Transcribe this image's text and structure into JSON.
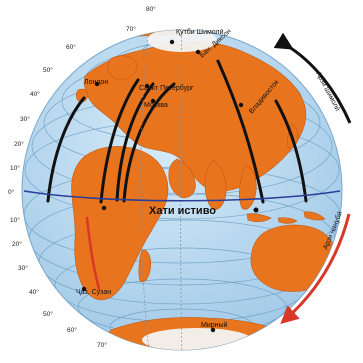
{
  "map": {
    "equator_label": "Хати истиво",
    "places": {
      "north_pole": "Қутби Шимолӣ",
      "dikson": "Бан. Диксон",
      "london": "Лондон",
      "saint_petersburg": "Санкт Петербург",
      "moscow": "Москва",
      "vladivostok": "Владивосток",
      "cape_town_isle": "Ҷаз. Сузан",
      "mirny": "Мирный"
    },
    "latitude_labels_north": [
      "80°",
      "70°",
      "60°",
      "50°",
      "40°",
      "30°",
      "20°",
      "10°"
    ],
    "latitude_labels_south": [
      "10°",
      "20°",
      "30°",
      "40°",
      "50°",
      "60°",
      "70°"
    ],
    "equator_degree": "0°",
    "arrows": {
      "north_label": "Арзи шимолӣ",
      "south_label": "Арзи ҷанубӣ"
    },
    "colors": {
      "ocean": "#b9d9ef",
      "land": "#e8741e",
      "ice": "#f3f3f3",
      "meridian_lines": "#111111",
      "north_arrow": "#111111",
      "south_arrow": "#d8372a",
      "equator": "#2a3f9a"
    }
  }
}
